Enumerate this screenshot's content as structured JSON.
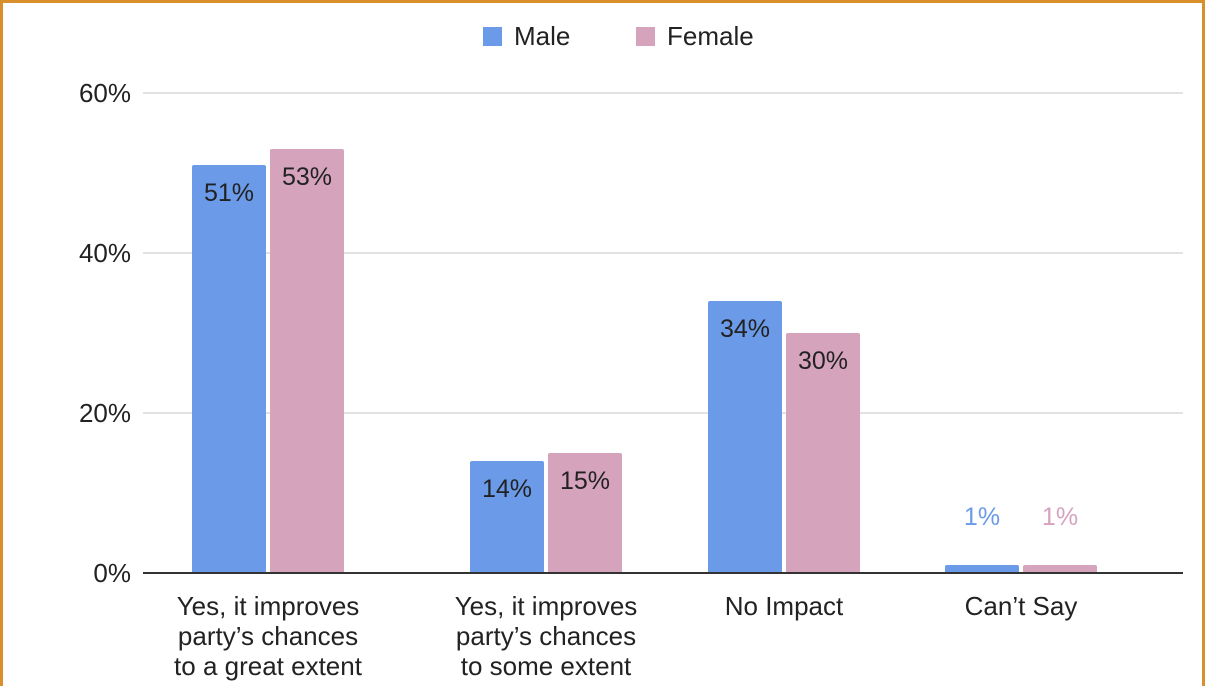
{
  "chart_data": {
    "type": "bar",
    "categories": [
      [
        "Yes, it improves",
        "party’s chances",
        "to a great extent"
      ],
      [
        "Yes, it improves",
        "party’s chances",
        "to some extent"
      ],
      [
        "No Impact"
      ],
      [
        "Can’t Say"
      ]
    ],
    "series": [
      {
        "name": "Male",
        "color": "#6b9be8",
        "values": [
          51,
          14,
          34,
          1
        ],
        "labels": [
          "51%",
          "14%",
          "34%",
          "1%"
        ]
      },
      {
        "name": "Female",
        "color": "#d6a3bd",
        "values": [
          53,
          15,
          30,
          1
        ],
        "labels": [
          "53%",
          "15%",
          "30%",
          "1%"
        ]
      }
    ],
    "ylim": [
      0,
      60
    ],
    "yticks": [
      {
        "value": 0,
        "label": "0%"
      },
      {
        "value": 20,
        "label": "20%"
      },
      {
        "value": 40,
        "label": "40%"
      },
      {
        "value": 60,
        "label": "60%"
      }
    ],
    "grid": true,
    "legend_position": "top-center"
  }
}
